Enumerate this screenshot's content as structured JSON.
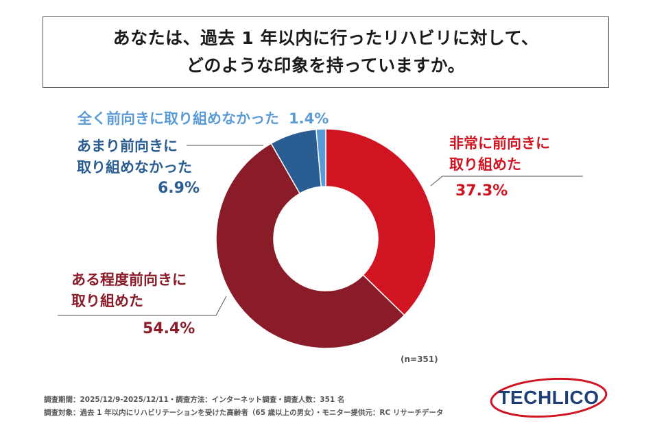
{
  "title": {
    "line1": "あなたは、過去 1 年以内に行ったリハビリに対して、",
    "line2": "どのような印象を持っていますか。"
  },
  "chart_data": {
    "type": "pie",
    "donut": true,
    "slices": [
      {
        "label_line1": "非常に前向きに",
        "label_line2": "取り組めた",
        "value": 37.3,
        "value_text": "37.3%",
        "color": "#d01421",
        "label_color": "#d01421"
      },
      {
        "label_line1": "ある程度前向きに",
        "label_line2": "取り組めた",
        "value": 54.4,
        "value_text": "54.4%",
        "color": "#891c28",
        "label_color": "#891c28"
      },
      {
        "label_line1": "あまり前向きに",
        "label_line2": "取り組めなかった",
        "value": 6.9,
        "value_text": "6.9%",
        "color": "#2a5d92",
        "label_color": "#2a5d92"
      },
      {
        "label_line1": "全く前向きに取り組めなかった",
        "label_line2": "",
        "value": 1.4,
        "value_text": "1.4%",
        "color": "#5b9bd5",
        "label_color": "#5b9bd5"
      }
    ],
    "n_label": "(n=351)"
  },
  "footer": {
    "line1": "調査期間：2025/12/9-2025/12/11・調査方法：インターネット調査・調査人数：351 名",
    "line2": "調査対象：過去 1 年以内にリハビリテーションを受けた高齢者（65 歳以上の男女）・モニター提供元：RC リサーチデータ"
  },
  "logo": {
    "text": "TECHLICO",
    "color": "#1d3f76",
    "swoosh_color": "#d01421"
  }
}
